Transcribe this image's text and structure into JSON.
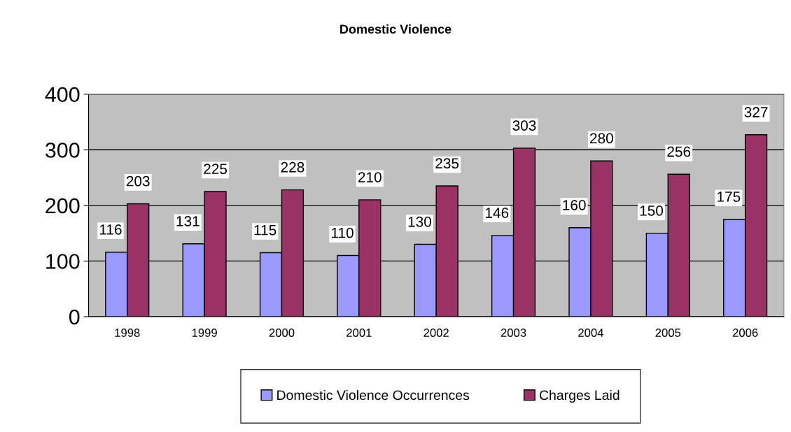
{
  "chart_data": {
    "type": "bar",
    "title": "Domestic Violence",
    "categories": [
      "1998",
      "1999",
      "2000",
      "2001",
      "2002",
      "2003",
      "2004",
      "2005",
      "2006"
    ],
    "series": [
      {
        "name": "Domestic Violence Occurrences",
        "color": "#9999ff",
        "values": [
          116,
          131,
          115,
          110,
          130,
          146,
          160,
          150,
          175
        ]
      },
      {
        "name": "Charges Laid",
        "color": "#993366",
        "values": [
          203,
          225,
          228,
          210,
          235,
          303,
          280,
          256,
          327
        ]
      }
    ],
    "ylim": [
      0,
      400
    ],
    "yticks": [
      0,
      100,
      200,
      300,
      400
    ],
    "grid": "y",
    "legend": "bottom",
    "data_labels": true
  }
}
